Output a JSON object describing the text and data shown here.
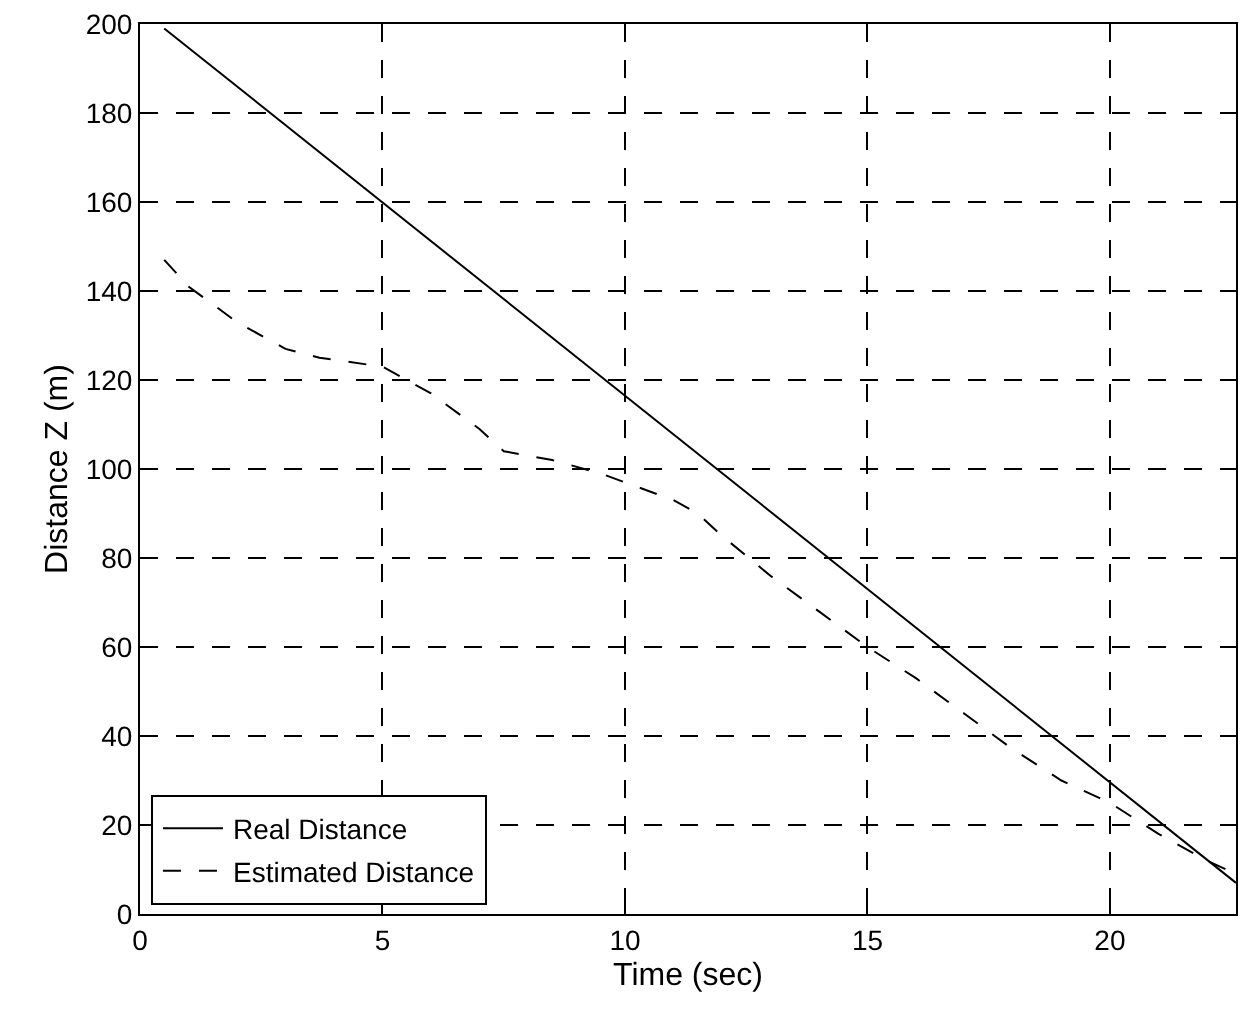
{
  "chart_data": {
    "type": "line",
    "xlabel": "Time (sec)",
    "ylabel": "Distance Z (m)",
    "xlim": [
      0,
      22.6
    ],
    "xticks": [
      0,
      5,
      10,
      15,
      20
    ],
    "ylim": [
      0,
      200
    ],
    "yticks": [
      0,
      20,
      40,
      60,
      80,
      100,
      120,
      140,
      160,
      180,
      200
    ],
    "grid": true,
    "legend": "bottom left",
    "series": [
      {
        "name": "Real Distance",
        "color": "#000000",
        "line_style": "solid",
        "x": [
          0.5,
          22.6
        ],
        "values": [
          199,
          7
        ]
      },
      {
        "name": "Estimated Distance",
        "color": "#000000",
        "line_style": "dashed",
        "x": [
          0.5,
          1,
          2,
          3,
          3.7,
          5,
          6,
          7,
          7.5,
          8.5,
          9.5,
          10,
          11,
          11.5,
          12,
          13,
          14,
          15,
          16,
          17,
          18,
          19,
          20,
          21,
          22,
          22.6
        ],
        "values": [
          147,
          141,
          133,
          127,
          125,
          123,
          117,
          109,
          104,
          102,
          99,
          97,
          93,
          90,
          85,
          76,
          68,
          60,
          53,
          45,
          37,
          30,
          25,
          18,
          12,
          9
        ]
      }
    ]
  }
}
